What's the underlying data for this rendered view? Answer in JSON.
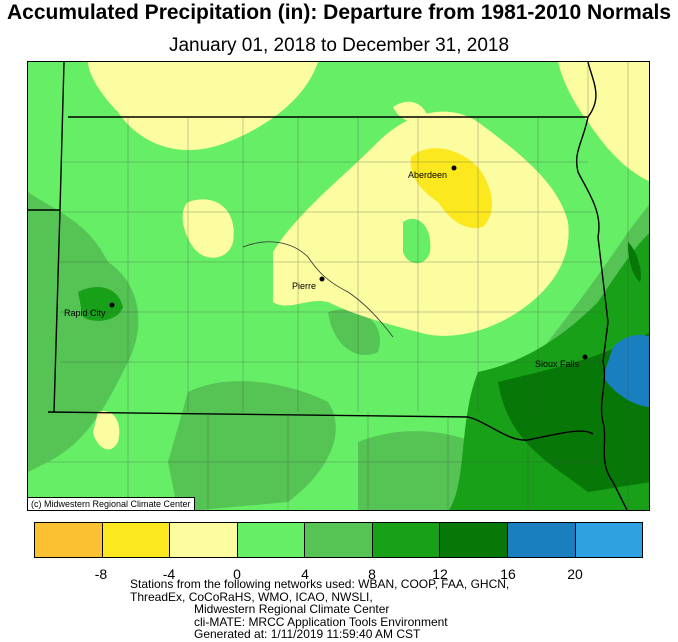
{
  "title": "Accumulated Precipitation (in): Departure from 1981-2010 Normals",
  "subtitle": "January 01, 2018 to December 31, 2018",
  "cities": [
    {
      "name": "Aberdeen"
    },
    {
      "name": "Pierre"
    },
    {
      "name": "Rapid City"
    },
    {
      "name": "Sioux Falls"
    }
  ],
  "credit": "(c) Midwestern Regional Climate Center",
  "legend": {
    "colors": [
      "#fcc033",
      "#fce81e",
      "#fcfca0",
      "#66ee66",
      "#55c455",
      "#18a018",
      "#077807",
      "#1a7fbf",
      "#2fa1e0"
    ],
    "ticks": [
      "-8",
      "-4",
      "0",
      "4",
      "8",
      "12",
      "16",
      "20"
    ]
  },
  "footer": [
    "Stations from the following networks used: WBAN, COOP, FAA, GHCN,",
    "ThreadEx, CoCoRaHS, WMO, ICAO, NWSLI,",
    "Midwestern Regional Climate Center",
    "cli-MATE: MRCC Application Tools Environment",
    "Generated at: 1/11/2019 11:59:40 AM CST"
  ]
}
